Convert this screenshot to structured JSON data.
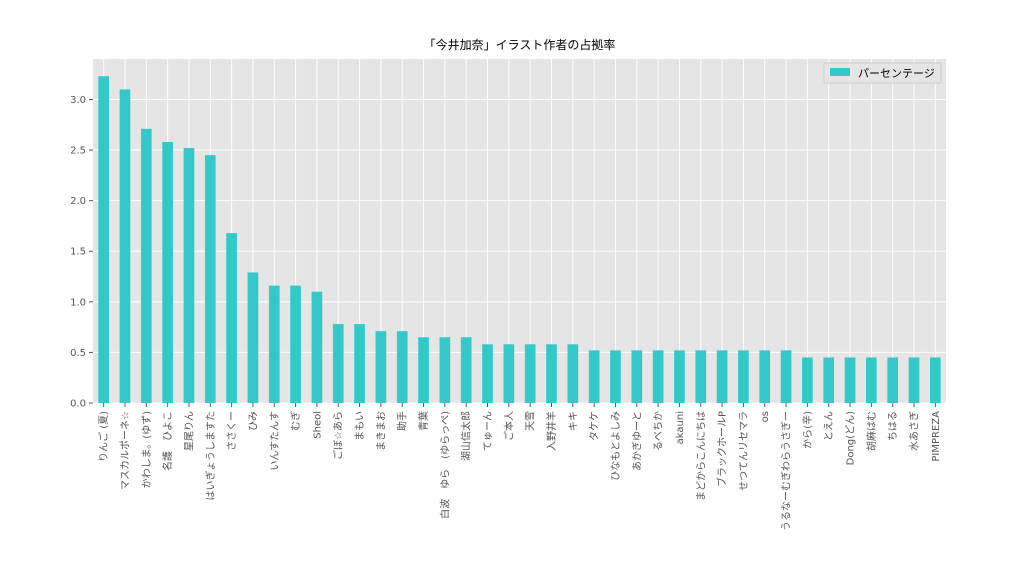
{
  "chart_data": {
    "type": "bar",
    "title": "「今井加奈」イラスト作者の占拠率",
    "xlabel": "",
    "ylabel": "",
    "ylim": [
      0,
      3.4
    ],
    "yticks": [
      "0.0",
      "0.5",
      "1.0",
      "1.5",
      "2.0",
      "2.5",
      "3.0"
    ],
    "grid": true,
    "legend_position": "top-right",
    "bar_color": "#33c9c9",
    "background_color": "#e5e5e5",
    "categories": [
      "りんご (夏)",
      "マスカルポーネ☆",
      "かわしま。(ゆず)",
      "名護　ひよこ",
      "星尾りん",
      "はいぎょうしますた",
      "ささくー",
      "ひみ",
      "いんすたんす",
      "むぎ",
      "Sheol",
      "ごぼ☆あら",
      "まもい",
      "まきまお",
      "助手",
      "青葉",
      "白波　ゆら　(ゆらっぺ)",
      "湖山信太郎",
      "てゅーん",
      "ご本人",
      "天雪",
      "入野井羊",
      "キキ",
      "タケケ",
      "ひなもとよしみ",
      "あかぎゆーと",
      "るべちか",
      "akauni",
      "まどからこんにちは",
      "ブラックホールP",
      "せつてんリセマラ",
      "os",
      "うるなーむぎわらうさぎー",
      "から(辛)",
      "とえん",
      "Dong(どん)",
      "胡麻はむ",
      "ちはる",
      "水あさぎ",
      "PIMPREZA"
    ],
    "series": [
      {
        "name": "パーセンテージ",
        "values": [
          3.23,
          3.1,
          2.71,
          2.58,
          2.52,
          2.45,
          1.68,
          1.29,
          1.16,
          1.16,
          1.1,
          0.78,
          0.78,
          0.71,
          0.71,
          0.65,
          0.65,
          0.65,
          0.58,
          0.58,
          0.58,
          0.58,
          0.58,
          0.52,
          0.52,
          0.52,
          0.52,
          0.52,
          0.52,
          0.52,
          0.52,
          0.52,
          0.52,
          0.45,
          0.45,
          0.45,
          0.45,
          0.45,
          0.45,
          0.45
        ]
      }
    ]
  }
}
